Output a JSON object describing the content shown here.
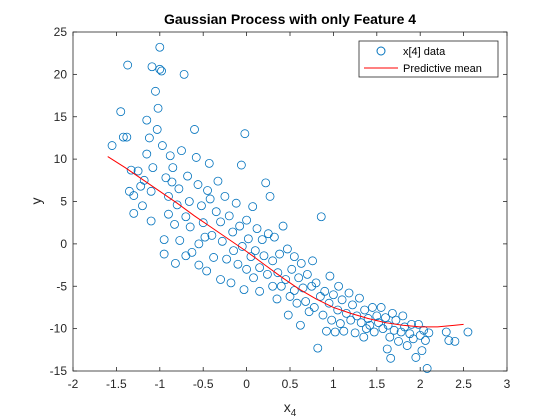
{
  "chart_data": {
    "type": "scatter",
    "title": "Gaussian Process with only Feature 4",
    "xlabel": "x",
    "xlabel_sub": "4",
    "ylabel": "y",
    "xlim": [
      -2,
      3
    ],
    "ylim": [
      -15,
      25
    ],
    "xticks": [
      -2,
      -1.5,
      -1,
      -0.5,
      0,
      0.5,
      1,
      1.5,
      2,
      2.5,
      3
    ],
    "yticks": [
      -15,
      -10,
      -5,
      0,
      5,
      10,
      15,
      20,
      25
    ],
    "grid": false,
    "legend_position": "top-right",
    "colors": {
      "data": "#0072BD",
      "mean": "#FF0000",
      "axis": "#262626"
    },
    "series": [
      {
        "name": "x[4] data",
        "style": "circle-marker",
        "points": [
          [
            -1.55,
            11.6
          ],
          [
            -1.45,
            15.6
          ],
          [
            -1.42,
            12.6
          ],
          [
            -1.38,
            12.6
          ],
          [
            -1.37,
            21.1
          ],
          [
            -1.33,
            8.7
          ],
          [
            -1.35,
            6.2
          ],
          [
            -1.3,
            5.7
          ],
          [
            -1.3,
            3.6
          ],
          [
            -1.25,
            8.6
          ],
          [
            -1.22,
            6.8
          ],
          [
            -1.2,
            4.5
          ],
          [
            -1.18,
            7.5
          ],
          [
            -1.15,
            10.6
          ],
          [
            -1.15,
            14.6
          ],
          [
            -1.12,
            12.5
          ],
          [
            -1.1,
            6.2
          ],
          [
            -1.1,
            2.7
          ],
          [
            -1.09,
            20.9
          ],
          [
            -1.08,
            9.0
          ],
          [
            -1.05,
            18.0
          ],
          [
            -1.03,
            13.5
          ],
          [
            -1.02,
            16.0
          ],
          [
            -1.0,
            23.2
          ],
          [
            -1.0,
            20.6
          ],
          [
            -0.98,
            20.4
          ],
          [
            -0.97,
            11.6
          ],
          [
            -0.95,
            0.5
          ],
          [
            -0.95,
            -1.2
          ],
          [
            -0.93,
            7.8
          ],
          [
            -0.9,
            3.5
          ],
          [
            -0.9,
            5.6
          ],
          [
            -0.88,
            10.4
          ],
          [
            -0.86,
            7.3
          ],
          [
            -0.85,
            9.0
          ],
          [
            -0.83,
            2.3
          ],
          [
            -0.82,
            -2.3
          ],
          [
            -0.8,
            4.6
          ],
          [
            -0.78,
            6.5
          ],
          [
            -0.77,
            0.4
          ],
          [
            -0.75,
            11.0
          ],
          [
            -0.72,
            20.0
          ],
          [
            -0.7,
            3.2
          ],
          [
            -0.7,
            -1.4
          ],
          [
            -0.68,
            8.0
          ],
          [
            -0.66,
            5.0
          ],
          [
            -0.65,
            2.0
          ],
          [
            -0.63,
            -1.0
          ],
          [
            -0.6,
            13.5
          ],
          [
            -0.58,
            10.2
          ],
          [
            -0.56,
            7.0
          ],
          [
            -0.55,
            0.0
          ],
          [
            -0.55,
            -2.5
          ],
          [
            -0.52,
            4.5
          ],
          [
            -0.5,
            2.5
          ],
          [
            -0.48,
            0.8
          ],
          [
            -0.46,
            -3.2
          ],
          [
            -0.45,
            6.3
          ],
          [
            -0.43,
            9.5
          ],
          [
            -0.42,
            5.3
          ],
          [
            -0.4,
            1.0
          ],
          [
            -0.38,
            -1.6
          ],
          [
            -0.35,
            3.8
          ],
          [
            -0.33,
            7.4
          ],
          [
            -0.3,
            2.6
          ],
          [
            -0.3,
            -4.2
          ],
          [
            -0.28,
            0.3
          ],
          [
            -0.25,
            5.6
          ],
          [
            -0.23,
            -1.8
          ],
          [
            -0.2,
            3.3
          ],
          [
            -0.18,
            -4.6
          ],
          [
            -0.16,
            1.4
          ],
          [
            -0.15,
            -0.8
          ],
          [
            -0.12,
            4.8
          ],
          [
            -0.1,
            -2.4
          ],
          [
            -0.08,
            2.1
          ],
          [
            -0.06,
            9.3
          ],
          [
            -0.05,
            -0.3
          ],
          [
            -0.03,
            -5.4
          ],
          [
            -0.02,
            13.0
          ],
          [
            0.0,
            2.8
          ],
          [
            0.0,
            -3.0
          ],
          [
            0.02,
            0.6
          ],
          [
            0.05,
            -1.5
          ],
          [
            0.07,
            4.4
          ],
          [
            0.08,
            -4.0
          ],
          [
            0.1,
            -0.8
          ],
          [
            0.12,
            1.8
          ],
          [
            0.15,
            -2.8
          ],
          [
            0.15,
            -5.6
          ],
          [
            0.18,
            0.5
          ],
          [
            0.2,
            -1.4
          ],
          [
            0.22,
            7.2
          ],
          [
            0.24,
            -3.6
          ],
          [
            0.25,
            1.2
          ],
          [
            0.27,
            5.6
          ],
          [
            0.3,
            -5.0
          ],
          [
            0.3,
            -2.0
          ],
          [
            0.32,
            0.8
          ],
          [
            0.35,
            -6.5
          ],
          [
            0.36,
            -3.4
          ],
          [
            0.38,
            -1.2
          ],
          [
            0.4,
            -5.0
          ],
          [
            0.42,
            2.1
          ],
          [
            0.45,
            -4.2
          ],
          [
            0.47,
            -0.6
          ],
          [
            0.48,
            -8.4
          ],
          [
            0.5,
            -6.2
          ],
          [
            0.52,
            -3.0
          ],
          [
            0.55,
            -5.5
          ],
          [
            0.55,
            -1.5
          ],
          [
            0.58,
            -7.0
          ],
          [
            0.6,
            -4.0
          ],
          [
            0.62,
            -9.6
          ],
          [
            0.63,
            -2.3
          ],
          [
            0.65,
            -5.2
          ],
          [
            0.68,
            -6.8
          ],
          [
            0.7,
            -3.6
          ],
          [
            0.72,
            -8.0
          ],
          [
            0.75,
            -5.0
          ],
          [
            0.76,
            -2.0
          ],
          [
            0.78,
            -7.5
          ],
          [
            0.8,
            -4.6
          ],
          [
            0.82,
            -12.3
          ],
          [
            0.85,
            -6.2
          ],
          [
            0.86,
            3.2
          ],
          [
            0.88,
            -8.4
          ],
          [
            0.9,
            -5.6
          ],
          [
            0.92,
            -10.3
          ],
          [
            0.95,
            -7.0
          ],
          [
            0.96,
            -3.8
          ],
          [
            0.98,
            -9.0
          ],
          [
            1.0,
            -6.0
          ],
          [
            1.02,
            -10.4
          ],
          [
            1.05,
            -7.8
          ],
          [
            1.06,
            -5.0
          ],
          [
            1.08,
            -9.4
          ],
          [
            1.1,
            -6.6
          ],
          [
            1.12,
            -10.3
          ],
          [
            1.15,
            -8.2
          ],
          [
            1.18,
            -5.8
          ],
          [
            1.2,
            -9.0
          ],
          [
            1.22,
            -7.2
          ],
          [
            1.25,
            -10.5
          ],
          [
            1.27,
            -8.5
          ],
          [
            1.3,
            -6.4
          ],
          [
            1.32,
            -9.3
          ],
          [
            1.35,
            -11.0
          ],
          [
            1.36,
            -7.8
          ],
          [
            1.38,
            -10.0
          ],
          [
            1.4,
            -8.8
          ],
          [
            1.42,
            -9.6
          ],
          [
            1.45,
            -7.5
          ],
          [
            1.47,
            -10.4
          ],
          [
            1.5,
            -8.5
          ],
          [
            1.52,
            -9.3
          ],
          [
            1.55,
            -7.5
          ],
          [
            1.57,
            -10.0
          ],
          [
            1.6,
            -8.7
          ],
          [
            1.62,
            -12.4
          ],
          [
            1.63,
            -9.6
          ],
          [
            1.65,
            -11.0
          ],
          [
            1.66,
            -13.5
          ],
          [
            1.68,
            -8.2
          ],
          [
            1.7,
            -10.2
          ],
          [
            1.72,
            -9.0
          ],
          [
            1.75,
            -11.5
          ],
          [
            1.78,
            -10.4
          ],
          [
            1.8,
            -8.5
          ],
          [
            1.82,
            -9.8
          ],
          [
            1.85,
            -12.0
          ],
          [
            1.88,
            -10.6
          ],
          [
            1.9,
            -9.5
          ],
          [
            1.92,
            -11.2
          ],
          [
            1.95,
            -13.4
          ],
          [
            1.98,
            -9.5
          ],
          [
            2.0,
            -10.8
          ],
          [
            2.02,
            -12.6
          ],
          [
            2.04,
            -10.2
          ],
          [
            2.06,
            -11.4
          ],
          [
            2.08,
            -14.7
          ],
          [
            2.1,
            -10.5
          ],
          [
            2.3,
            -10.4
          ],
          [
            2.33,
            -11.4
          ],
          [
            2.4,
            -11.5
          ],
          [
            2.55,
            -10.4
          ]
        ]
      },
      {
        "name": "Predictive mean",
        "style": "line",
        "points": [
          [
            -1.6,
            10.3
          ],
          [
            -1.4,
            9.0
          ],
          [
            -1.2,
            7.6
          ],
          [
            -1.0,
            6.2
          ],
          [
            -0.8,
            4.8
          ],
          [
            -0.6,
            3.3
          ],
          [
            -0.4,
            1.9
          ],
          [
            -0.2,
            0.5
          ],
          [
            0.0,
            -0.9
          ],
          [
            0.2,
            -2.4
          ],
          [
            0.4,
            -3.9
          ],
          [
            0.6,
            -5.3
          ],
          [
            0.8,
            -6.5
          ],
          [
            1.0,
            -7.5
          ],
          [
            1.2,
            -8.2
          ],
          [
            1.4,
            -8.8
          ],
          [
            1.6,
            -9.3
          ],
          [
            1.8,
            -9.6
          ],
          [
            2.0,
            -9.8
          ],
          [
            2.2,
            -9.8
          ],
          [
            2.4,
            -9.6
          ],
          [
            2.5,
            -9.5
          ]
        ]
      }
    ]
  }
}
